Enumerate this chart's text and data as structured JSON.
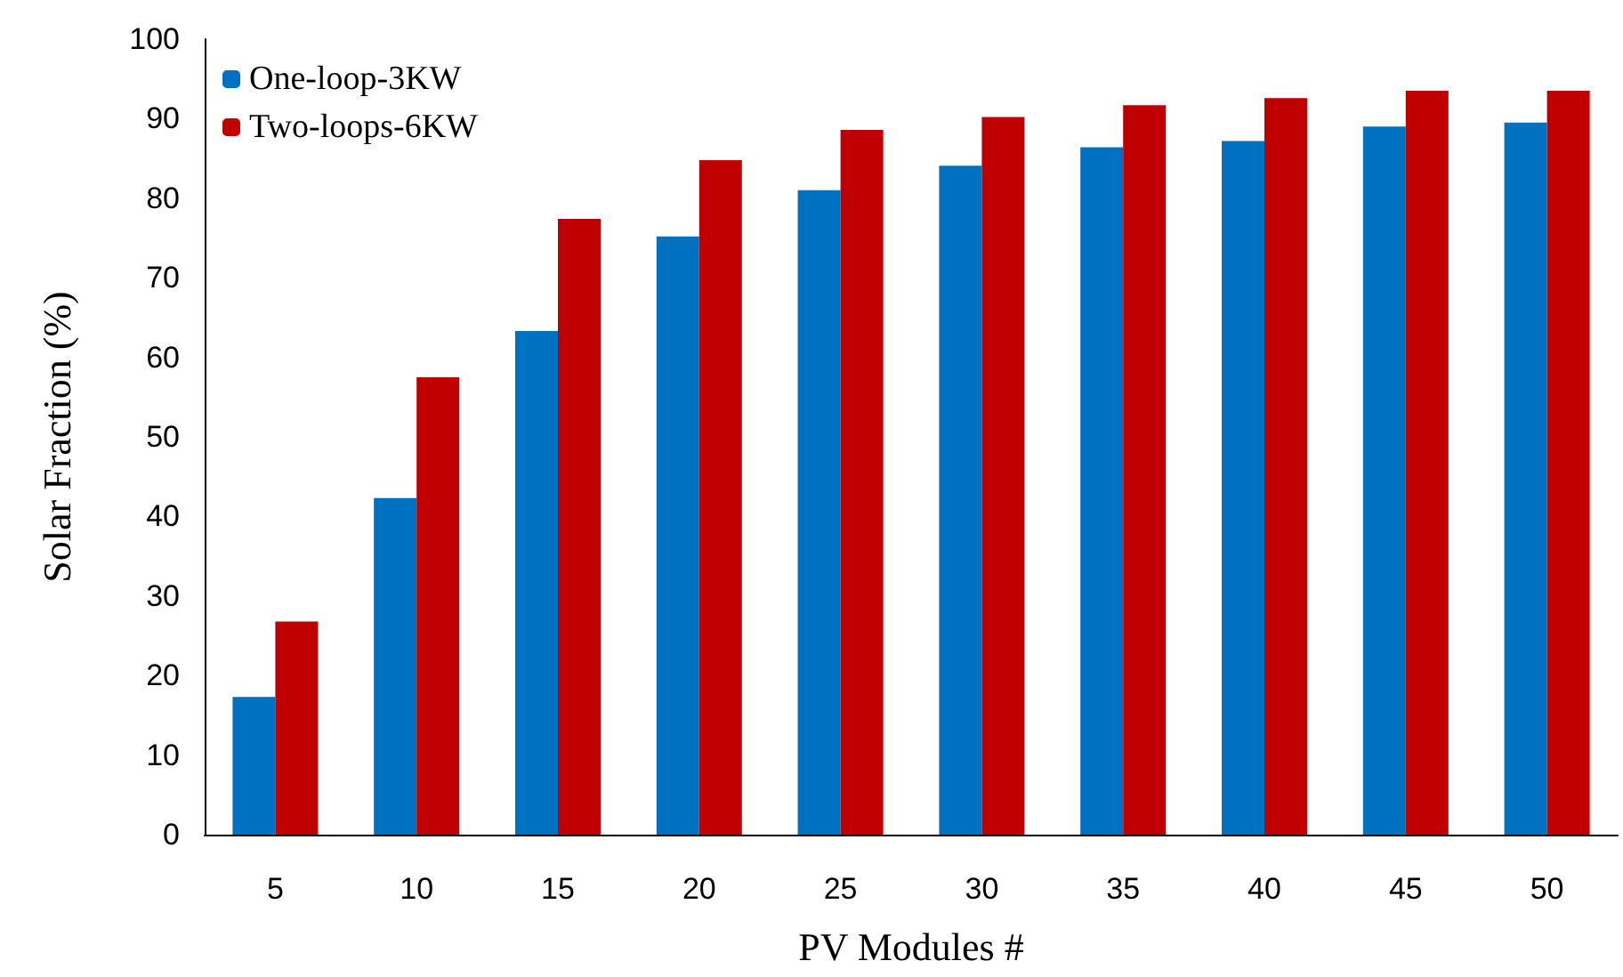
{
  "chart_data": {
    "type": "bar",
    "xlabel": "PV Modules #",
    "ylabel": "Solar Fraction (%)",
    "categories": [
      "5",
      "10",
      "15",
      "20",
      "25",
      "30",
      "35",
      "40",
      "45",
      "50"
    ],
    "series": [
      {
        "name": "One-loop-3KW",
        "color": "#0070c0",
        "values": [
          17.3,
          42.3,
          63.3,
          75.2,
          81.0,
          84.1,
          86.4,
          87.2,
          89.0,
          89.5
        ]
      },
      {
        "name": "Two-loops-6KW",
        "color": "#c00000",
        "values": [
          26.8,
          57.5,
          77.4,
          84.8,
          88.6,
          90.2,
          91.7,
          92.6,
          93.5,
          93.5
        ]
      }
    ],
    "ylim": [
      0,
      100
    ],
    "yticks": [
      0,
      10,
      20,
      30,
      40,
      50,
      60,
      70,
      80,
      90,
      100
    ],
    "grid": false,
    "legend": "top left"
  }
}
